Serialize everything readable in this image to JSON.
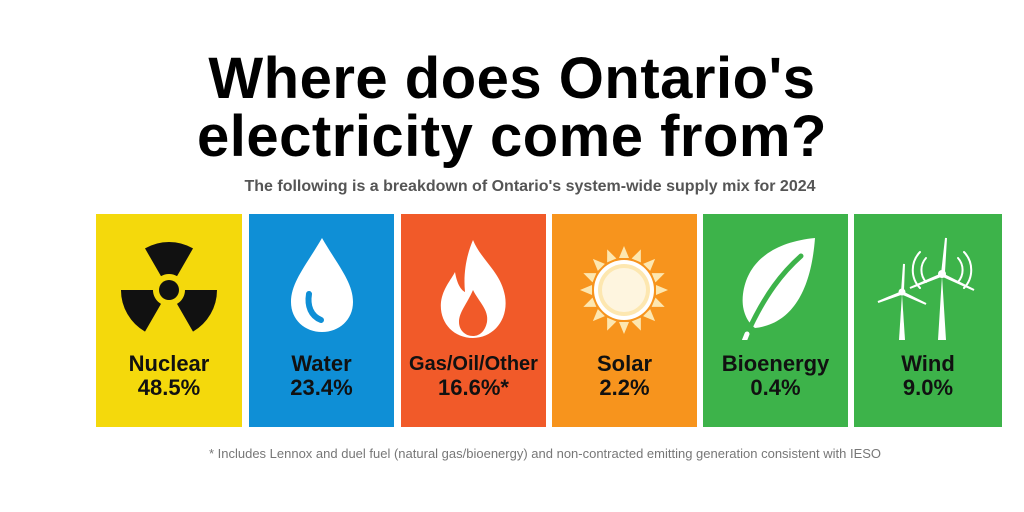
{
  "title_line1": "Where does Ontario's",
  "title_line2": "electricity come from?",
  "subtitle": "The following is a breakdown of Ontario's system-wide supply mix for 2024",
  "sources": [
    {
      "label": "Nuclear",
      "value": "48.5%",
      "color": "#f4d90c",
      "text_color": "#111111",
      "icon": "radiation-icon"
    },
    {
      "label": "Water",
      "value": "23.4%",
      "color": "#0f8fd6",
      "text_color": "#111111",
      "icon": "water-drop-icon"
    },
    {
      "label": "Gas/Oil/Other",
      "value": "16.6%*",
      "color": "#f15a29",
      "text_color": "#111111",
      "icon": "flame-icon"
    },
    {
      "label": "Solar",
      "value": "2.2%",
      "color": "#f7941d",
      "text_color": "#111111",
      "icon": "sun-icon"
    },
    {
      "label": "Bioenergy",
      "value": "0.4%",
      "color": "#3db34a",
      "text_color": "#111111",
      "icon": "leaf-icon"
    },
    {
      "label": "Wind",
      "value": "9.0%",
      "color": "#3db34a",
      "text_color": "#111111",
      "icon": "wind-turbine-icon"
    }
  ],
  "footnote": "* Includes Lennox and duel fuel (natural gas/bioenergy) and non-contracted emitting generation consistent with IESO"
}
